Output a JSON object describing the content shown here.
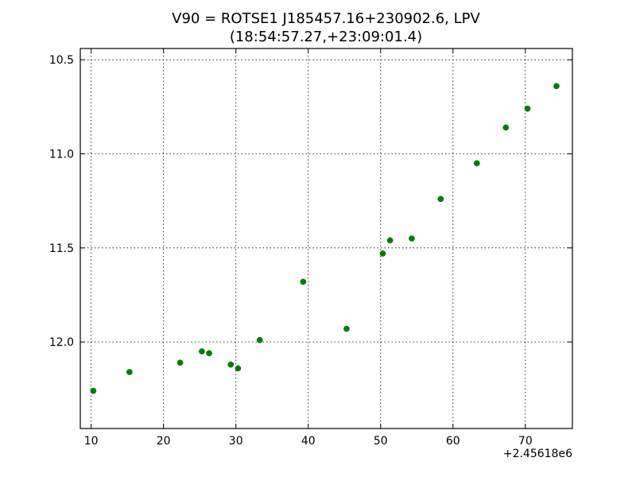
{
  "chart_data": {
    "type": "scatter",
    "title_line1": "V90 = ROTSE1 J185457.16+230902.6, LPV",
    "title_line2": "(18:54:57.27,+23:09:01.4)",
    "x_offset_label": "+2.45618e6",
    "xlim": [
      8.5,
      76.5
    ],
    "ylim": [
      12.46,
      10.44
    ],
    "y_inverted": true,
    "xticks": [
      10,
      20,
      30,
      40,
      50,
      60,
      70
    ],
    "yticks": [
      10.5,
      11.0,
      11.5,
      12.0
    ],
    "ytick_labels": [
      "10.5",
      "11.0",
      "11.5",
      "12.0"
    ],
    "grid": true,
    "marker_color": "#008000",
    "points": [
      {
        "x": 10.3,
        "y": 12.26
      },
      {
        "x": 15.3,
        "y": 12.16
      },
      {
        "x": 22.3,
        "y": 12.11
      },
      {
        "x": 25.3,
        "y": 12.05
      },
      {
        "x": 26.3,
        "y": 12.06
      },
      {
        "x": 29.3,
        "y": 12.12
      },
      {
        "x": 30.3,
        "y": 12.14
      },
      {
        "x": 33.3,
        "y": 11.99
      },
      {
        "x": 39.3,
        "y": 11.68
      },
      {
        "x": 45.3,
        "y": 11.93
      },
      {
        "x": 50.3,
        "y": 11.53
      },
      {
        "x": 51.3,
        "y": 11.46
      },
      {
        "x": 54.3,
        "y": 11.45
      },
      {
        "x": 58.3,
        "y": 11.24
      },
      {
        "x": 63.3,
        "y": 11.05
      },
      {
        "x": 67.3,
        "y": 10.86
      },
      {
        "x": 70.3,
        "y": 10.76
      },
      {
        "x": 74.3,
        "y": 10.64
      }
    ]
  }
}
